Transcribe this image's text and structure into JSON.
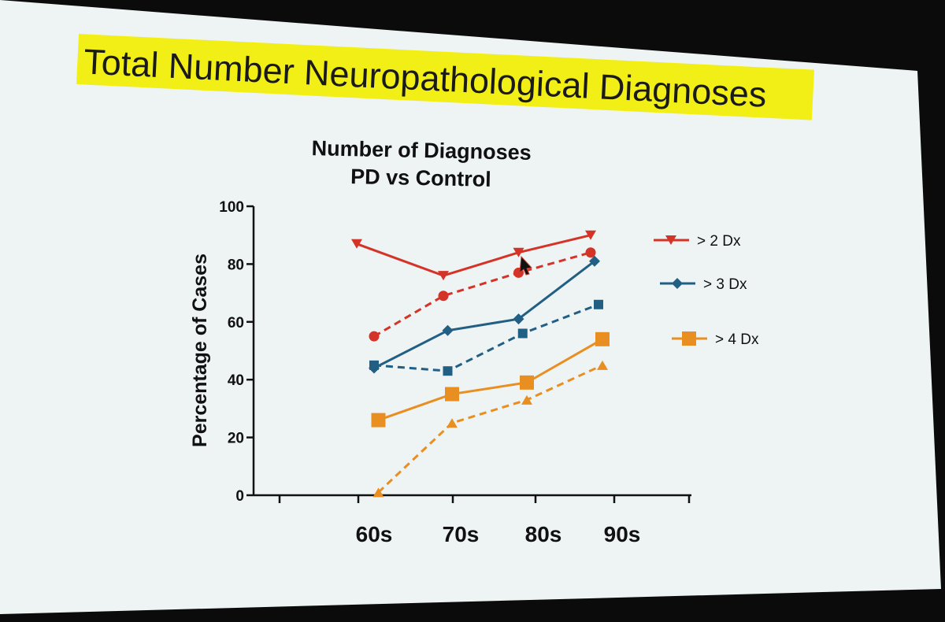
{
  "slide": {
    "title": "Total Number Neuropathological Diagnoses",
    "highlight_color": "#f2ef16",
    "background_color": "#eef3f3"
  },
  "chart_data": {
    "type": "line",
    "title_lines": [
      "Number of Diagnoses",
      "PD vs Control"
    ],
    "xlabel": "",
    "ylabel": "Percentage of Cases",
    "categories": [
      "60s",
      "70s",
      "80s",
      "90s"
    ],
    "ylim": [
      0,
      100
    ],
    "yticks": [
      0,
      20,
      40,
      60,
      80,
      100
    ],
    "grid": false,
    "legend_position": "right",
    "legend": [
      {
        "label": "> 2 Dx",
        "color": "#d43328",
        "marker": "triangle-down"
      },
      {
        "label": "> 3 Dx",
        "color": "#215f84",
        "marker": "diamond"
      },
      {
        "label": "> 4 Dx",
        "color": "#e98f21",
        "marker": "square"
      }
    ],
    "series": [
      {
        "legend_index": 0,
        "color": "#d43328",
        "marker": "triangle-down",
        "dash": false,
        "x": [
          0.8,
          1.8,
          2.7,
          3.6
        ],
        "values": [
          87,
          76,
          84,
          90
        ]
      },
      {
        "legend_index": 0,
        "color": "#d43328",
        "marker": "circle",
        "dash": true,
        "x": [
          1.0,
          1.8,
          2.7,
          3.6
        ],
        "values": [
          55,
          69,
          77,
          84
        ]
      },
      {
        "legend_index": 1,
        "color": "#215f84",
        "marker": "diamond",
        "dash": false,
        "x": [
          1.0,
          1.85,
          2.7,
          3.65
        ],
        "values": [
          44,
          57,
          61,
          81
        ]
      },
      {
        "legend_index": 1,
        "color": "#215f84",
        "marker": "square-small",
        "dash": true,
        "x": [
          1.0,
          1.85,
          2.75,
          3.7
        ],
        "values": [
          45,
          43,
          56,
          66
        ]
      },
      {
        "legend_index": 2,
        "color": "#e98f21",
        "marker": "square",
        "dash": false,
        "x": [
          1.05,
          1.9,
          2.8,
          3.75
        ],
        "values": [
          26,
          35,
          39,
          54
        ]
      },
      {
        "legend_index": 2,
        "color": "#e98f21",
        "marker": "triangle-up",
        "dash": true,
        "x": [
          1.05,
          1.9,
          2.8,
          3.75
        ],
        "values": [
          1,
          25,
          33,
          45
        ]
      }
    ],
    "cursor_visible": true
  }
}
